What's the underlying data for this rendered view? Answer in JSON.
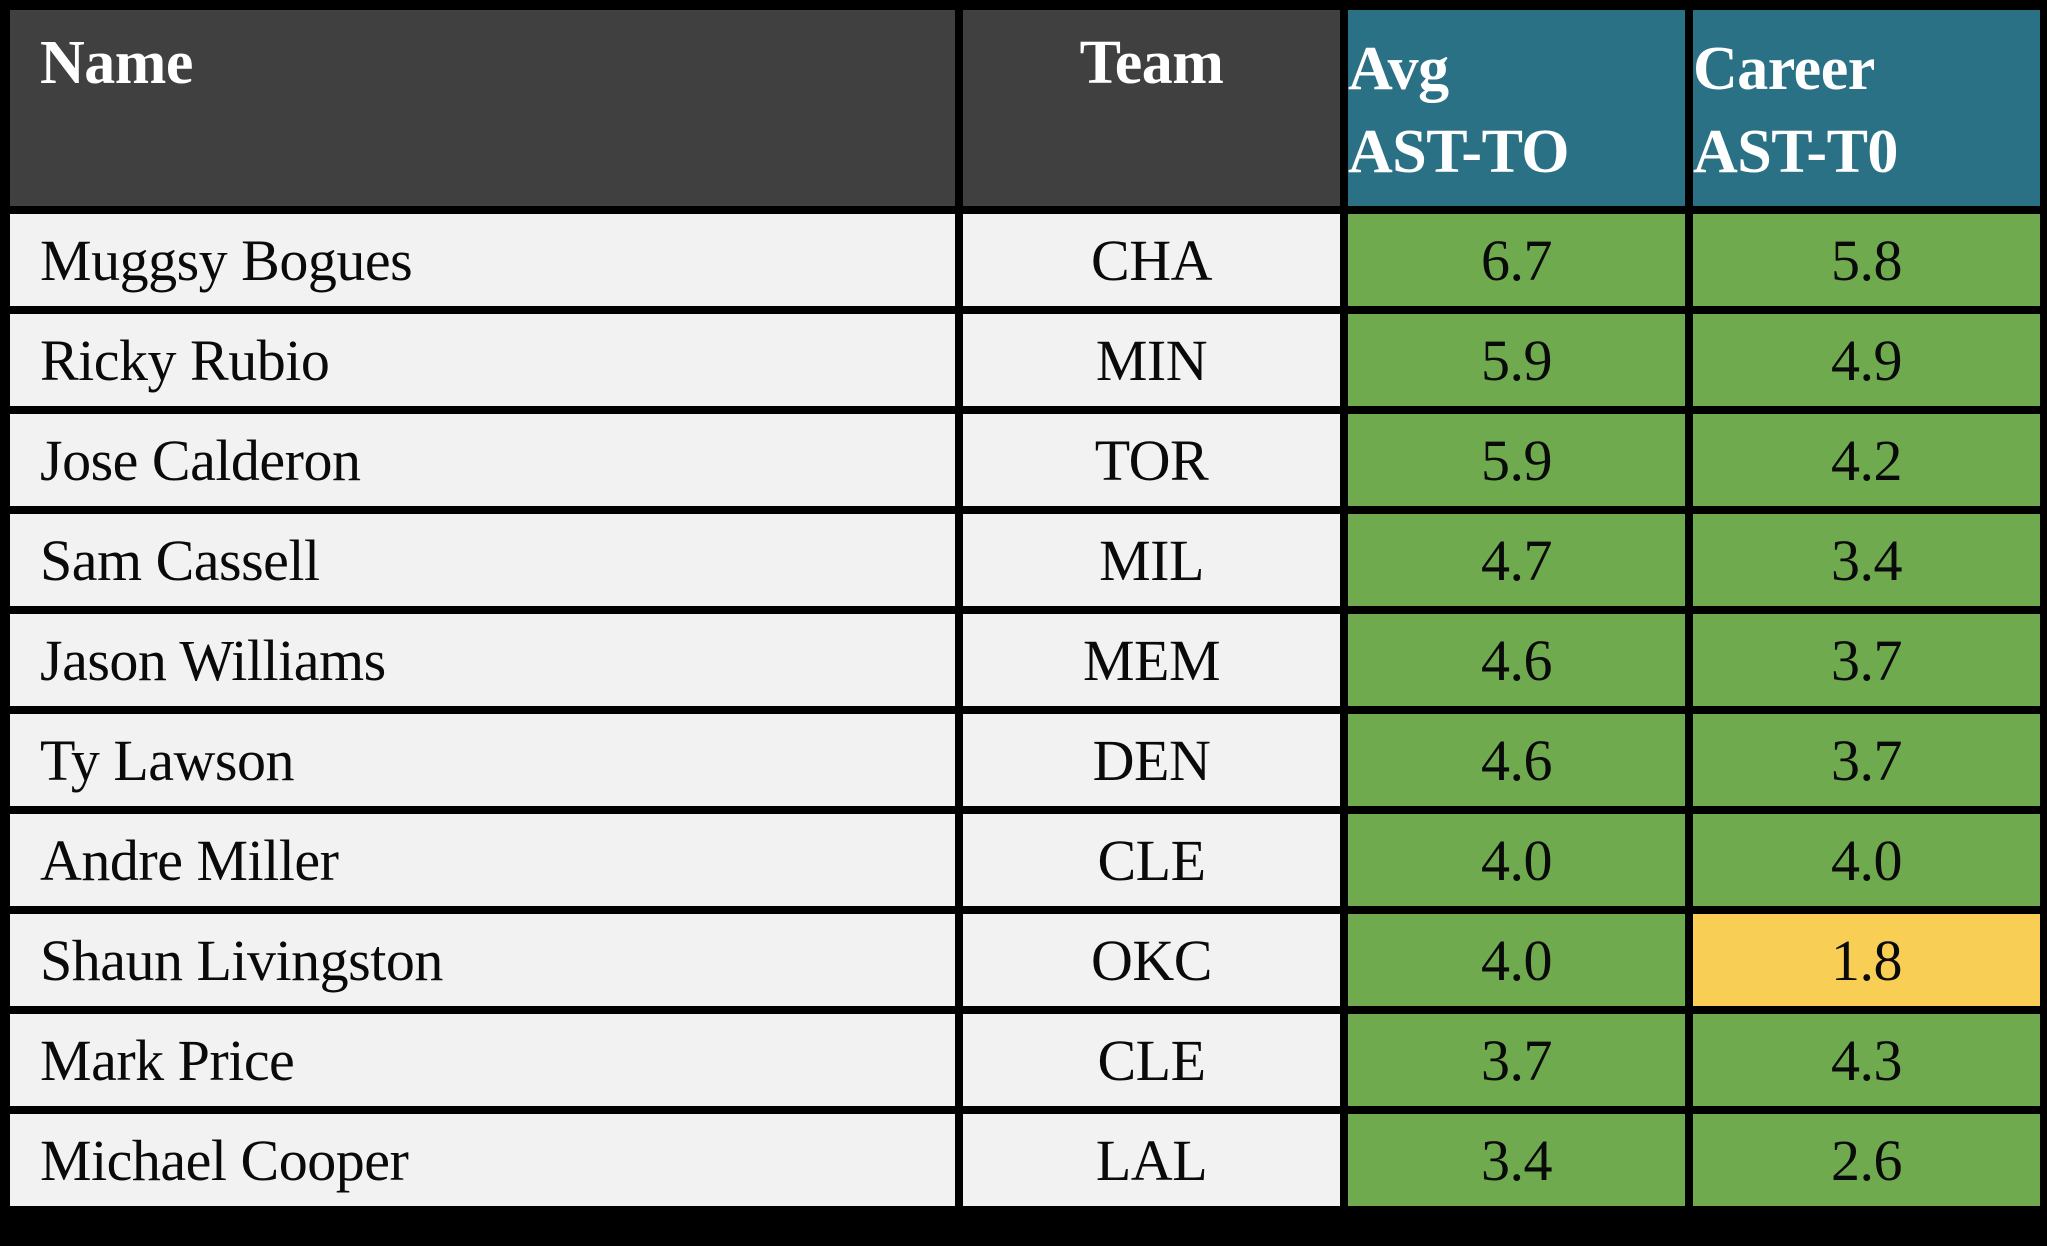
{
  "colors": {
    "border": "#000000",
    "cell_light": "#f2f2f2",
    "header_dark": "#404040",
    "header_teal": "#2b7186",
    "header_text": "#ffffff",
    "text_dark": "#0a0a0a",
    "green": "#6faa4e",
    "yellow": "#f9ce55"
  },
  "chart_data": {
    "type": "table",
    "columns": [
      {
        "id": "name",
        "label": "Name",
        "header_style": "dark"
      },
      {
        "id": "team",
        "label": "Team",
        "header_style": "dark"
      },
      {
        "id": "avg",
        "label": "Avg AST-TO",
        "label_lines": [
          "Avg",
          "AST-TO"
        ],
        "header_style": "teal"
      },
      {
        "id": "career",
        "label": "Career AST-T0",
        "label_lines": [
          "Career",
          "AST-T0"
        ],
        "header_style": "teal"
      }
    ],
    "rows": [
      {
        "name": "Muggsy Bogues",
        "team": "CHA",
        "avg": "6.7",
        "career": "5.8",
        "avg_bg": "green",
        "career_bg": "green"
      },
      {
        "name": "Ricky Rubio",
        "team": "MIN",
        "avg": "5.9",
        "career": "4.9",
        "avg_bg": "green",
        "career_bg": "green"
      },
      {
        "name": "Jose Calderon",
        "team": "TOR",
        "avg": "5.9",
        "career": "4.2",
        "avg_bg": "green",
        "career_bg": "green"
      },
      {
        "name": "Sam Cassell",
        "team": "MIL",
        "avg": "4.7",
        "career": "3.4",
        "avg_bg": "green",
        "career_bg": "green"
      },
      {
        "name": "Jason Williams",
        "team": "MEM",
        "avg": "4.6",
        "career": "3.7",
        "avg_bg": "green",
        "career_bg": "green"
      },
      {
        "name": "Ty Lawson",
        "team": "DEN",
        "avg": "4.6",
        "career": "3.7",
        "avg_bg": "green",
        "career_bg": "green"
      },
      {
        "name": "Andre Miller",
        "team": "CLE",
        "avg": "4.0",
        "career": "4.0",
        "avg_bg": "green",
        "career_bg": "green"
      },
      {
        "name": "Shaun Livingston",
        "team": "OKC",
        "avg": "4.0",
        "career": "1.8",
        "avg_bg": "green",
        "career_bg": "yellow"
      },
      {
        "name": "Mark Price",
        "team": "CLE",
        "avg": "3.7",
        "career": "4.3",
        "avg_bg": "green",
        "career_bg": "green"
      },
      {
        "name": "Michael Cooper",
        "team": "LAL",
        "avg": "3.4",
        "career": "2.6",
        "avg_bg": "green",
        "career_bg": "green"
      }
    ]
  }
}
